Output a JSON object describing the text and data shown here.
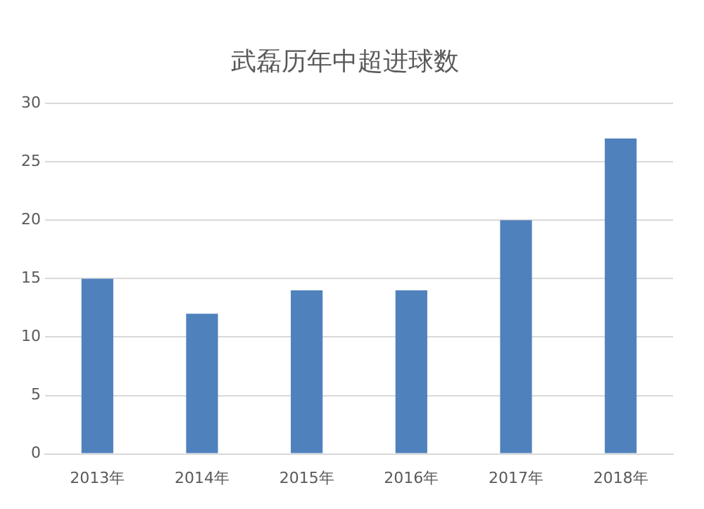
{
  "chart_data": {
    "type": "bar",
    "title": "武磊历年中超进球数",
    "categories": [
      "2013年",
      "2014年",
      "2015年",
      "2016年",
      "2017年",
      "2018年"
    ],
    "values": [
      15,
      12,
      14,
      14,
      20,
      27
    ],
    "color": "#4f81bd",
    "ylim": [
      0,
      30
    ],
    "yticks": [
      0,
      5,
      10,
      15,
      20,
      25,
      30
    ],
    "grid": "y",
    "legend": false
  }
}
